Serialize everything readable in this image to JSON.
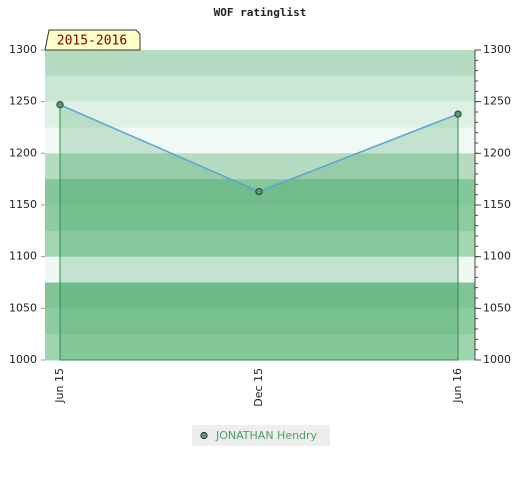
{
  "chart_data": {
    "type": "line",
    "title": "WOF ratinglist",
    "badge": "2015-2016",
    "categories": [
      "Jun 15",
      "Dec 15",
      "Jun 16"
    ],
    "series": [
      {
        "name": "JONATHAN Hendry",
        "color": "#4f9f66",
        "values": [
          1247,
          1163,
          1238
        ]
      }
    ],
    "ylim": [
      1000,
      1300
    ],
    "yticks": [
      1000,
      1050,
      1100,
      1150,
      1200,
      1250,
      1300
    ],
    "y2lim": [
      1000,
      1300
    ],
    "y2ticks": [
      1000,
      1050,
      1100,
      1150,
      1200,
      1250,
      1300
    ]
  }
}
